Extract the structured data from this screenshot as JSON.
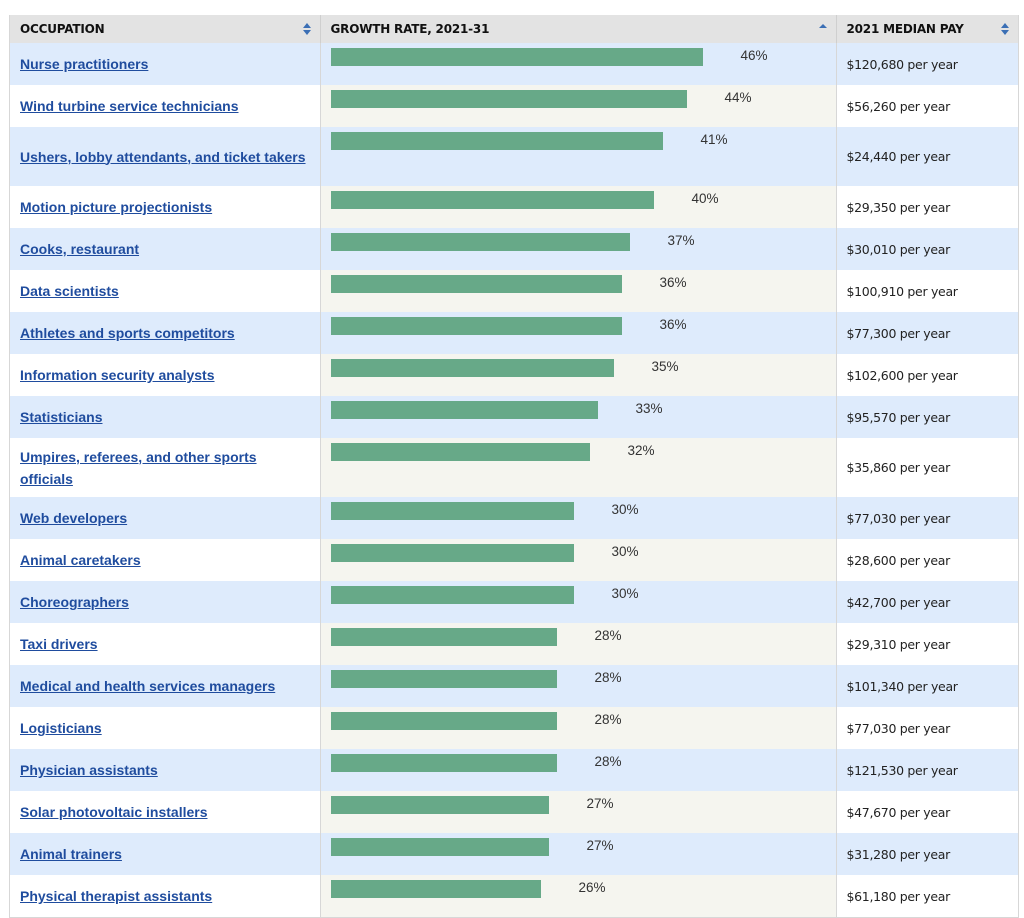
{
  "header": {
    "occupation": "OCCUPATION",
    "growth": "GROWTH RATE, 2021-31",
    "pay": "2021 MEDIAN PAY"
  },
  "colors": {
    "bar": "#67a988",
    "link": "#1f4c9e",
    "row_alt": "#deebfc"
  },
  "max_scale_percent": 46,
  "rows": [
    {
      "occupation": "Nurse practitioners",
      "growth": 46,
      "growth_label": "46%",
      "pay": "$120,680 per year"
    },
    {
      "occupation": "Wind turbine service technicians",
      "growth": 44,
      "growth_label": "44%",
      "pay": "$56,260 per year"
    },
    {
      "occupation": "Ushers, lobby attendants, and ticket takers",
      "growth": 41,
      "growth_label": "41%",
      "pay": "$24,440 per year"
    },
    {
      "occupation": "Motion picture projectionists",
      "growth": 40,
      "growth_label": "40%",
      "pay": "$29,350 per year"
    },
    {
      "occupation": "Cooks, restaurant",
      "growth": 37,
      "growth_label": "37%",
      "pay": "$30,010 per year"
    },
    {
      "occupation": "Data scientists",
      "growth": 36,
      "growth_label": "36%",
      "pay": "$100,910 per year"
    },
    {
      "occupation": "Athletes and sports competitors",
      "growth": 36,
      "growth_label": "36%",
      "pay": "$77,300 per year"
    },
    {
      "occupation": "Information security analysts",
      "growth": 35,
      "growth_label": "35%",
      "pay": "$102,600 per year"
    },
    {
      "occupation": "Statisticians",
      "growth": 33,
      "growth_label": "33%",
      "pay": "$95,570 per year"
    },
    {
      "occupation": "Umpires, referees, and other sports officials",
      "growth": 32,
      "growth_label": "32%",
      "pay": "$35,860 per year"
    },
    {
      "occupation": "Web developers",
      "growth": 30,
      "growth_label": "30%",
      "pay": "$77,030 per year"
    },
    {
      "occupation": "Animal caretakers",
      "growth": 30,
      "growth_label": "30%",
      "pay": "$28,600 per year"
    },
    {
      "occupation": "Choreographers",
      "growth": 30,
      "growth_label": "30%",
      "pay": "$42,700 per year"
    },
    {
      "occupation": "Taxi drivers",
      "growth": 28,
      "growth_label": "28%",
      "pay": "$29,310 per year"
    },
    {
      "occupation": "Medical and health services managers",
      "growth": 28,
      "growth_label": "28%",
      "pay": "$101,340 per year"
    },
    {
      "occupation": "Logisticians",
      "growth": 28,
      "growth_label": "28%",
      "pay": "$77,030 per year"
    },
    {
      "occupation": "Physician assistants",
      "growth": 28,
      "growth_label": "28%",
      "pay": "$121,530 per year"
    },
    {
      "occupation": "Solar photovoltaic installers",
      "growth": 27,
      "growth_label": "27%",
      "pay": "$47,670 per year"
    },
    {
      "occupation": "Animal trainers",
      "growth": 27,
      "growth_label": "27%",
      "pay": "$31,280 per year"
    },
    {
      "occupation": "Physical therapist assistants",
      "growth": 26,
      "growth_label": "26%",
      "pay": "$61,180 per year"
    }
  ]
}
